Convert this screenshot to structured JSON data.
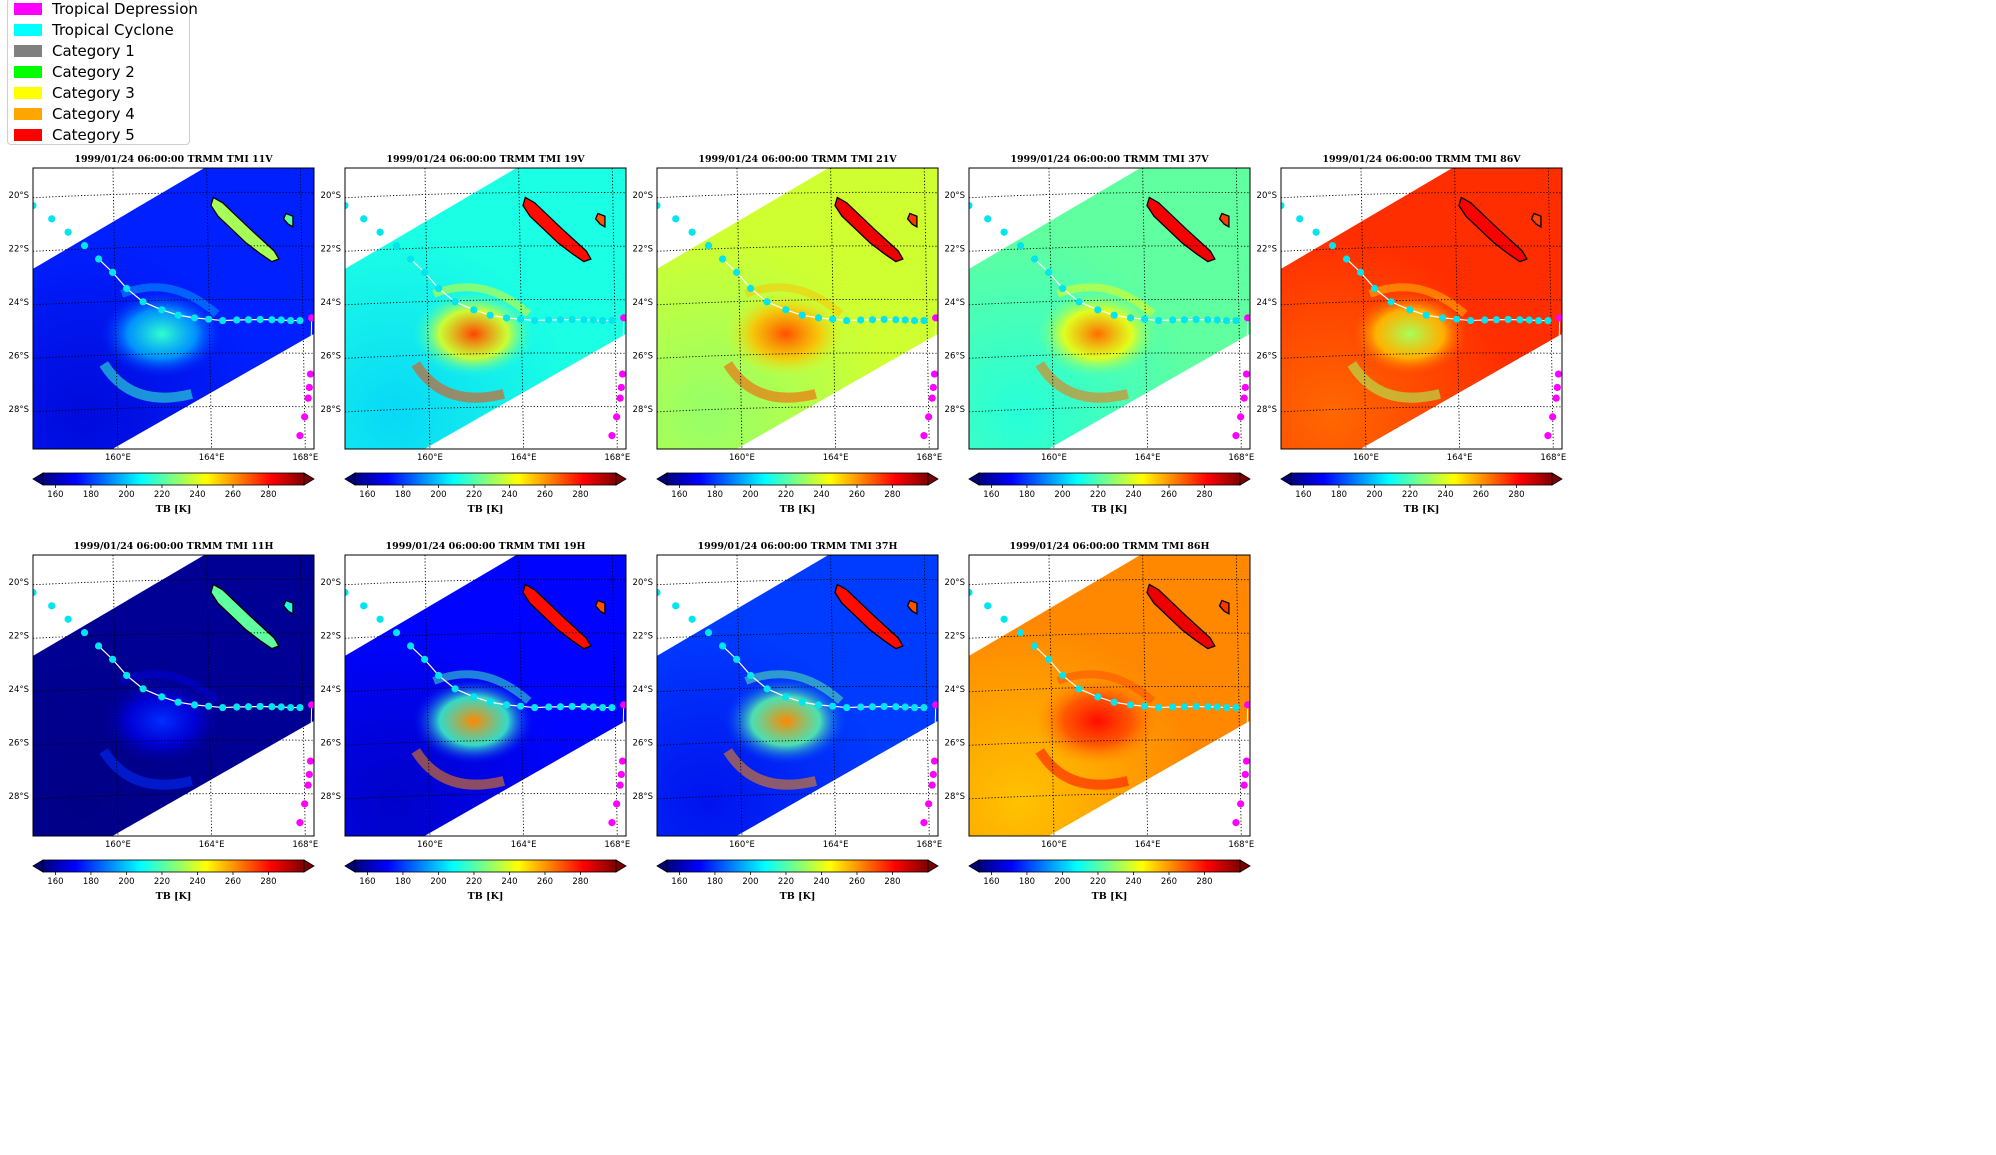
{
  "legend": {
    "items": [
      {
        "label": "Tropical Depression",
        "color": "#ff00ff"
      },
      {
        "label": "Tropical Cyclone",
        "color": "#00ffff"
      },
      {
        "label": "Category 1",
        "color": "#808080"
      },
      {
        "label": "Category 2",
        "color": "#00ff00"
      },
      {
        "label": "Category 3",
        "color": "#ffff00"
      },
      {
        "label": "Category 4",
        "color": "#ffa500"
      },
      {
        "label": "Category 5",
        "color": "#ff0000"
      }
    ]
  },
  "map": {
    "lat_labels": [
      "20°S",
      "22°S",
      "24°S",
      "26°S",
      "28°S"
    ],
    "lon_labels": [
      "160°E",
      "164°E",
      "168°E"
    ],
    "lat_values": [
      -20,
      -22,
      -24,
      -26,
      -28
    ],
    "lon_values": [
      160,
      164,
      168
    ],
    "lon_range": [
      156.5,
      168.5
    ],
    "lat_range": [
      -29.5,
      -19
    ]
  },
  "colorbar": {
    "ticks": [
      "160",
      "180",
      "200",
      "220",
      "240",
      "260",
      "280"
    ],
    "tick_values": [
      160,
      180,
      200,
      220,
      240,
      260,
      280
    ],
    "range": [
      153,
      300
    ],
    "label": "TB [K]",
    "colors": [
      "#00007f",
      "#0000ff",
      "#007fff",
      "#00ffff",
      "#7fff7f",
      "#ffff00",
      "#ff7f00",
      "#ff0000",
      "#7f0000"
    ]
  },
  "track_color": "#00e5ee",
  "late_track_color": "#ff00ff",
  "panels": [
    {
      "title": "1999/01/24 06:00:00  TRMM TMI 11V",
      "mean_tb": 176,
      "storm_tb": 215,
      "land_tb": 232
    },
    {
      "title": "1999/01/24 06:00:00  TRMM TMI 19V",
      "mean_tb": 212,
      "storm_tb": 272,
      "land_tb": 280
    },
    {
      "title": "1999/01/24 06:00:00  TRMM TMI 21V",
      "mean_tb": 238,
      "storm_tb": 270,
      "land_tb": 284
    },
    {
      "title": "1999/01/24 06:00:00  TRMM TMI 37V",
      "mean_tb": 222,
      "storm_tb": 266,
      "land_tb": 283
    },
    {
      "title": "1999/01/24 06:00:00  TRMM TMI 86V",
      "mean_tb": 275,
      "storm_tb": 232,
      "land_tb": 282
    },
    {
      "title": "1999/01/24 06:00:00  TRMM TMI 11H",
      "mean_tb": 156,
      "storm_tb": 178,
      "land_tb": 222
    },
    {
      "title": "1999/01/24 06:00:00  TRMM TMI 19H",
      "mean_tb": 172,
      "storm_tb": 262,
      "land_tb": 280
    },
    {
      "title": "1999/01/24 06:00:00  TRMM TMI 37H",
      "mean_tb": 180,
      "storm_tb": 262,
      "land_tb": 280
    },
    {
      "title": "1999/01/24 06:00:00  TRMM TMI 86H",
      "mean_tb": 262,
      "storm_tb": 280,
      "land_tb": 284
    }
  ]
}
